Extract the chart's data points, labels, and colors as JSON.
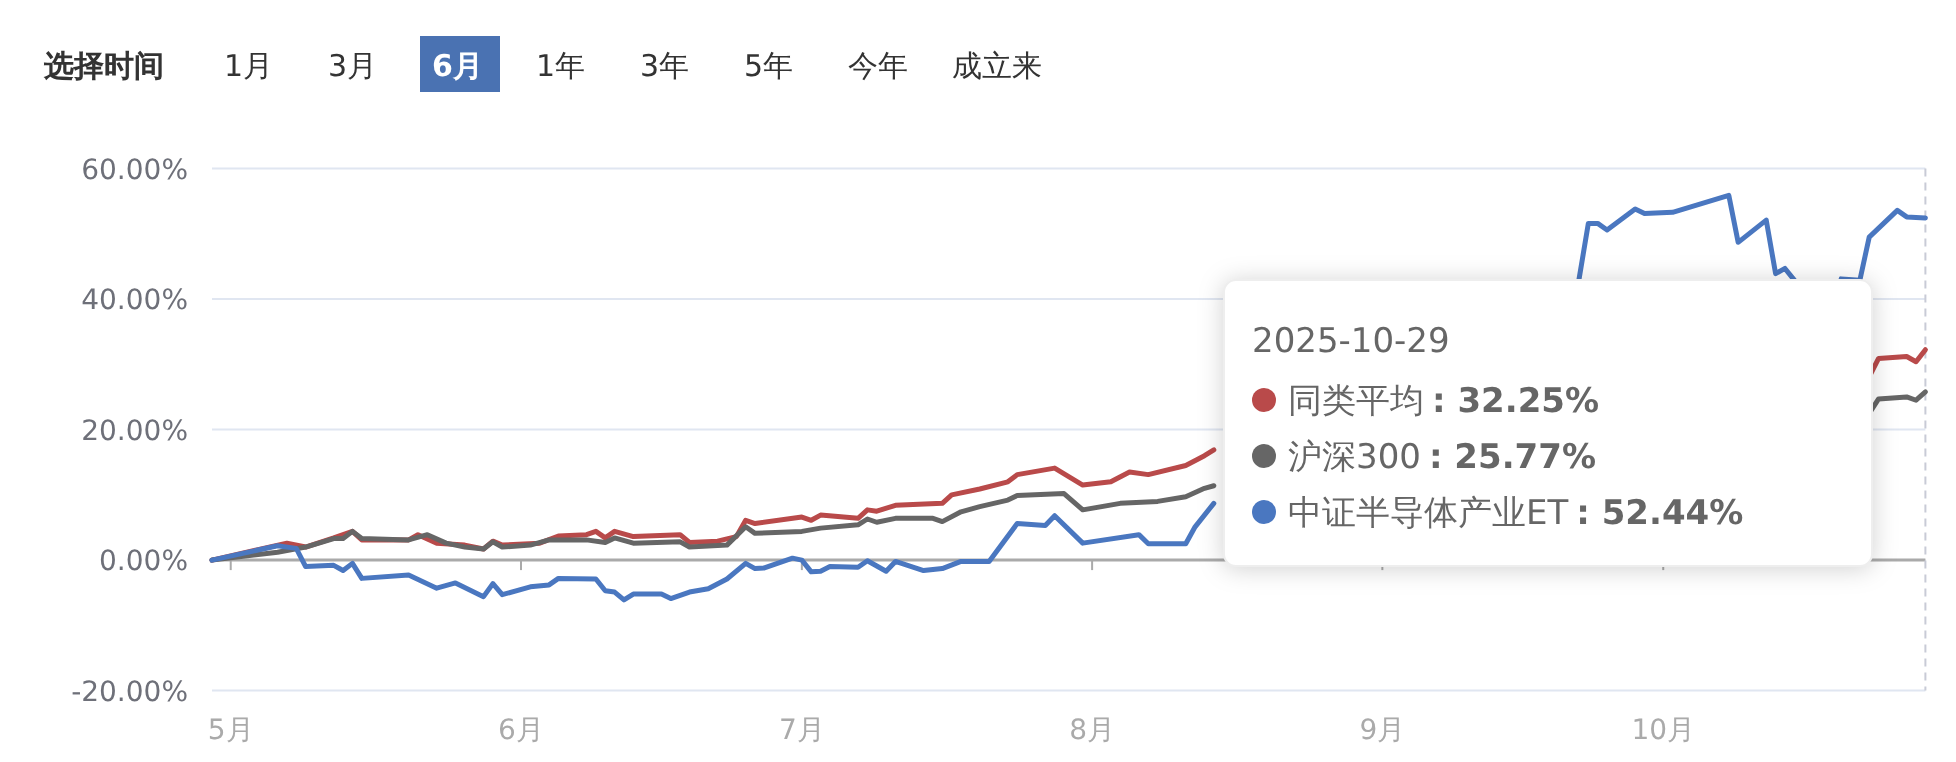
{
  "chart_data": {
    "type": "line",
    "annotations": [
      "选择时间",
      "1月",
      "3月",
      "6月",
      "1年",
      "3年",
      "5年",
      "今年",
      "成立来",
      "2025-10-29",
      ": 32.25%",
      ": 25.77%",
      ": 52.44%"
    ],
    "xlim": [
      "2025-04-29",
      "2025-10-29"
    ],
    "xticks": [
      {
        "value": "2025-05-01",
        "label": "5月"
      },
      {
        "value": "2025-06-01",
        "label": "6月"
      },
      {
        "value": "2025-07-01",
        "label": "7月"
      },
      {
        "value": "2025-08-01",
        "label": "8月"
      },
      {
        "value": "2025-09-01",
        "label": "9月"
      },
      {
        "value": "2025-10-01",
        "label": "10月"
      }
    ],
    "ylim": [
      -20,
      60
    ],
    "yticks": [
      {
        "value": -20,
        "label": "-20.00%"
      },
      {
        "value": 0,
        "label": "0.00%"
      },
      {
        "value": 20,
        "label": "20.00%"
      },
      {
        "value": 40,
        "label": "40.00%"
      },
      {
        "value": 60,
        "label": "60.00%"
      }
    ],
    "grid": "y",
    "legend": "right",
    "line_style": "solid",
    "marker": "none",
    "ref_lines": [
      {
        "axis": "x",
        "value": "2025-10-29",
        "label": null,
        "color": "#c8cbd6",
        "line_style": "dashed"
      }
    ],
    "series": [
      {
        "name": "同类平均",
        "color": "#b94a4a",
        "x": [
          "2025-04-29",
          "2025-05-07",
          "2025-05-09",
          "2025-05-12",
          "2025-05-14",
          "2025-05-15",
          "2025-05-20",
          "2025-05-21",
          "2025-05-23",
          "2025-05-26",
          "2025-05-28",
          "2025-05-29",
          "2025-05-30",
          "2025-06-03",
          "2025-06-05",
          "2025-06-08",
          "2025-06-09",
          "2025-06-10",
          "2025-06-11",
          "2025-06-13",
          "2025-06-18",
          "2025-06-19",
          "2025-06-22",
          "2025-06-24",
          "2025-06-25",
          "2025-06-26",
          "2025-07-01",
          "2025-07-02",
          "2025-07-03",
          "2025-07-07",
          "2025-07-08",
          "2025-07-09",
          "2025-07-11",
          "2025-07-16",
          "2025-07-17",
          "2025-07-20",
          "2025-07-23",
          "2025-07-24",
          "2025-07-28",
          "2025-07-31",
          "2025-08-03",
          "2025-08-05",
          "2025-08-07",
          "2025-08-11",
          "2025-08-13",
          "2025-08-14"
        ],
        "values": [
          0,
          2.6,
          2.0,
          3.4,
          4.4,
          3.1,
          3.1,
          3.9,
          2.6,
          2.3,
          1.7,
          2.9,
          2.3,
          2.6,
          3.7,
          3.9,
          4.4,
          3.4,
          4.4,
          3.6,
          3.9,
          2.7,
          2.9,
          3.6,
          6.1,
          5.6,
          6.6,
          6.1,
          6.9,
          6.4,
          7.7,
          7.5,
          8.4,
          8.7,
          10.0,
          10.9,
          12.0,
          13.1,
          14.1,
          11.5,
          12.0,
          13.5,
          13.1,
          14.5,
          16.0,
          16.9
        ]
      },
      {
        "name": "沪深300",
        "color": "#666666",
        "x": [
          "2025-04-29",
          "2025-05-06",
          "2025-05-09",
          "2025-05-12",
          "2025-05-13",
          "2025-05-14",
          "2025-05-15",
          "2025-05-20",
          "2025-05-22",
          "2025-05-24",
          "2025-05-26",
          "2025-05-28",
          "2025-05-29",
          "2025-05-30",
          "2025-06-02",
          "2025-06-04",
          "2025-06-08",
          "2025-06-10",
          "2025-06-11",
          "2025-06-13",
          "2025-06-18",
          "2025-06-19",
          "2025-06-23",
          "2025-06-25",
          "2025-06-26",
          "2025-07-01",
          "2025-07-03",
          "2025-07-07",
          "2025-07-08",
          "2025-07-09",
          "2025-07-11",
          "2025-07-15",
          "2025-07-16",
          "2025-07-18",
          "2025-07-20",
          "2025-07-23",
          "2025-07-24",
          "2025-07-29",
          "2025-07-31",
          "2025-08-04",
          "2025-08-08",
          "2025-08-11",
          "2025-08-13",
          "2025-08-14"
        ],
        "values": [
          0,
          1.2,
          2.0,
          3.3,
          3.3,
          4.4,
          3.3,
          3.1,
          3.9,
          2.6,
          2.0,
          1.7,
          2.8,
          2.0,
          2.3,
          3.1,
          3.1,
          2.7,
          3.4,
          2.6,
          2.8,
          2.0,
          2.3,
          5.1,
          4.1,
          4.4,
          4.9,
          5.4,
          6.3,
          5.8,
          6.4,
          6.4,
          5.9,
          7.4,
          8.2,
          9.2,
          9.9,
          10.2,
          7.7,
          8.7,
          9.0,
          9.7,
          11.0,
          11.4
        ]
      },
      {
        "name": "中证半导体产业ET",
        "color": "#4a77c0",
        "x": [
          "2025-04-29",
          "2025-05-06",
          "2025-05-08",
          "2025-05-09",
          "2025-05-12",
          "2025-05-13",
          "2025-05-14",
          "2025-05-15",
          "2025-05-20",
          "2025-05-23",
          "2025-05-25",
          "2025-05-28",
          "2025-05-29",
          "2025-05-30",
          "2025-06-02",
          "2025-06-04",
          "2025-06-05",
          "2025-06-09",
          "2025-06-10",
          "2025-06-11",
          "2025-06-12",
          "2025-06-13",
          "2025-06-16",
          "2025-06-17",
          "2025-06-19",
          "2025-06-21",
          "2025-06-23",
          "2025-06-25",
          "2025-06-26",
          "2025-06-27",
          "2025-06-30",
          "2025-07-01",
          "2025-07-02",
          "2025-07-03",
          "2025-07-04",
          "2025-07-07",
          "2025-07-08",
          "2025-07-10",
          "2025-07-11",
          "2025-07-14",
          "2025-07-16",
          "2025-07-18",
          "2025-07-21",
          "2025-07-24",
          "2025-07-27",
          "2025-07-28",
          "2025-07-31",
          "2025-08-06",
          "2025-08-07",
          "2025-08-11",
          "2025-08-12",
          "2025-08-14"
        ],
        "values": [
          0,
          2.2,
          1.8,
          -1.0,
          -0.8,
          -1.6,
          -0.5,
          -2.8,
          -2.3,
          -4.3,
          -3.5,
          -5.6,
          -3.6,
          -5.3,
          -4.1,
          -3.8,
          -2.8,
          -2.9,
          -4.7,
          -4.9,
          -6.1,
          -5.2,
          -5.2,
          -5.9,
          -4.9,
          -4.4,
          -2.9,
          -0.5,
          -1.3,
          -1.2,
          0.3,
          0,
          -1.8,
          -1.7,
          -1.0,
          -1.1,
          -0.1,
          -1.7,
          -0.2,
          -1.6,
          -1.3,
          -0.2,
          -0.2,
          5.6,
          5.3,
          6.8,
          2.6,
          3.9,
          2.5,
          2.5,
          5.1,
          8.7
        ]
      },
      {
        "color": "#b94a4a",
        "x": [
          "2025-10-23",
          "2025-10-24",
          "2025-10-27",
          "2025-10-28",
          "2025-10-29"
        ],
        "values": [
          28.1,
          30.9,
          31.2,
          30.4,
          32.25
        ]
      },
      {
        "color": "#666666",
        "x": [
          "2025-10-23",
          "2025-10-24",
          "2025-10-27",
          "2025-10-28",
          "2025-10-29"
        ],
        "values": [
          22.5,
          24.7,
          25.0,
          24.5,
          25.77
        ]
      },
      {
        "color": "#4a77c0",
        "x": [
          "2025-09-22",
          "2025-09-23",
          "2025-09-24",
          "2025-09-25",
          "2025-09-28",
          "2025-09-29",
          "2025-10-02",
          "2025-10-08",
          "2025-10-09",
          "2025-10-12",
          "2025-10-13",
          "2025-10-14",
          "2025-10-15"
        ],
        "values": [
          43,
          51.6,
          51.6,
          50.6,
          53.8,
          53.1,
          53.3,
          55.9,
          48.7,
          52.1,
          43.9,
          44.7,
          42.9
        ]
      },
      {
        "color": "#4a77c0",
        "x": [
          "2025-10-20",
          "2025-10-22",
          "2025-10-23",
          "2025-10-26",
          "2025-10-27",
          "2025-10-29"
        ],
        "values": [
          43.1,
          42.9,
          49.5,
          53.6,
          52.6,
          52.44
        ]
      }
    ]
  }
}
